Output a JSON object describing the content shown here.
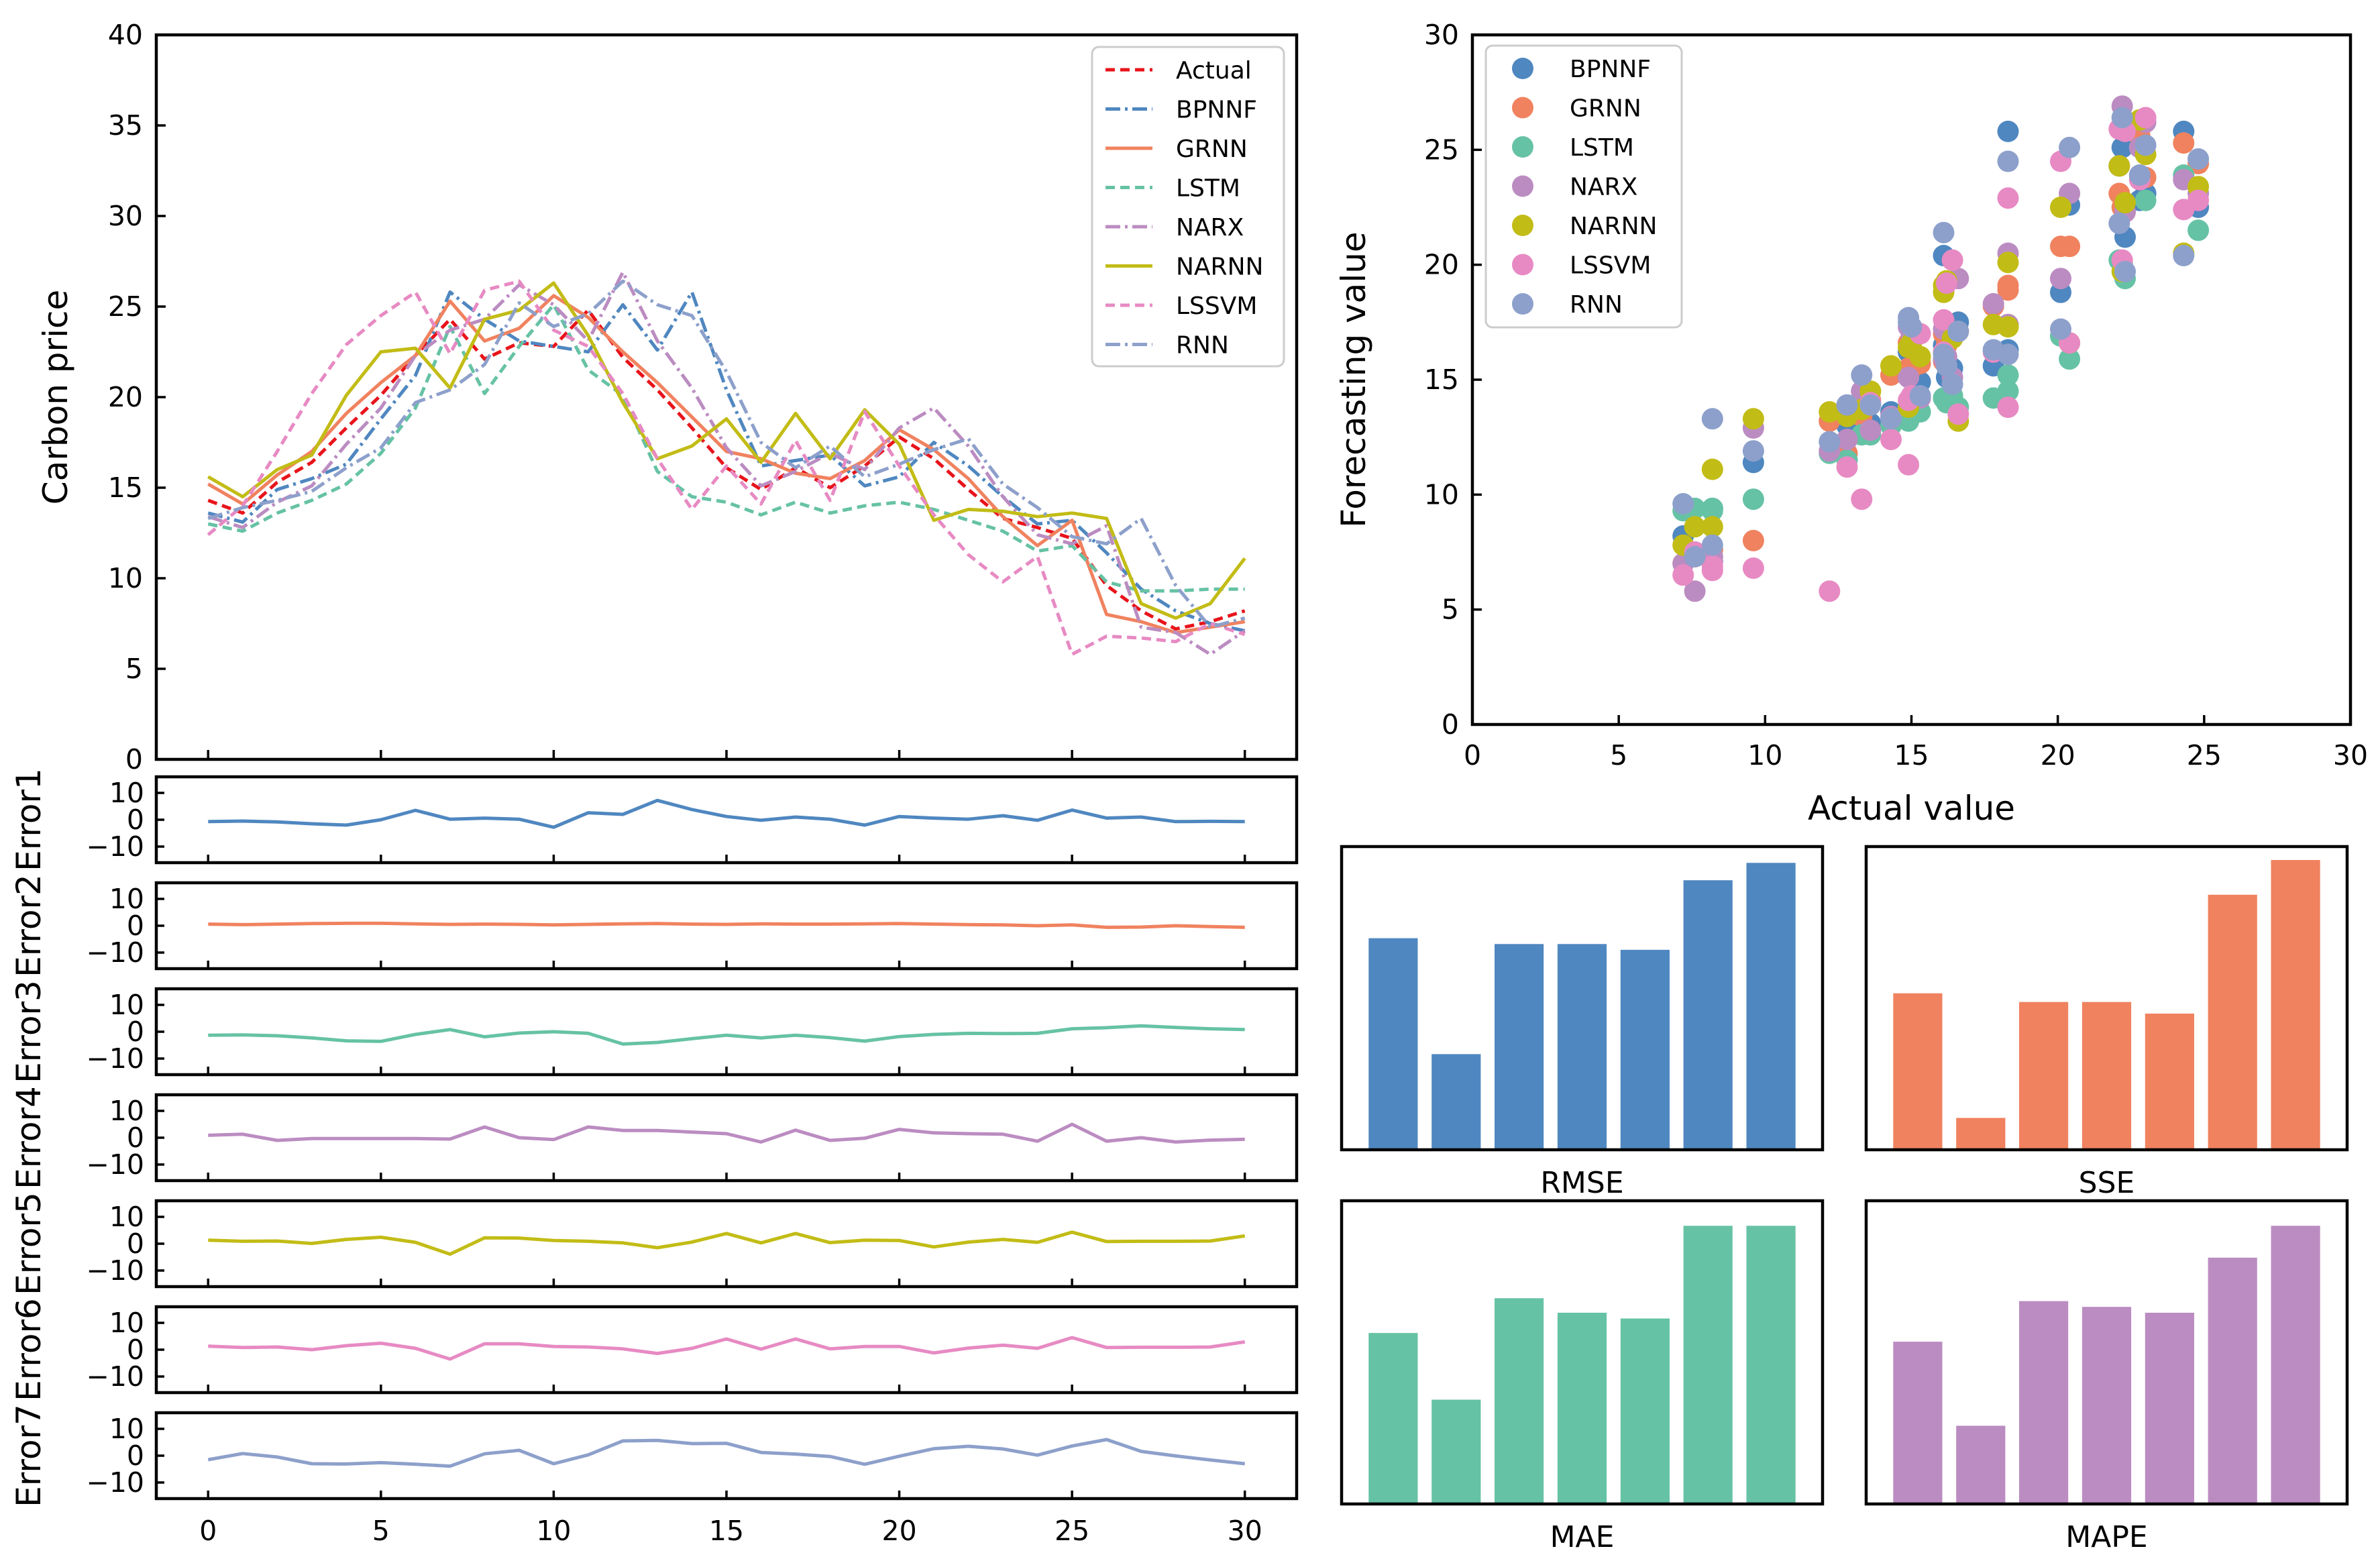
{
  "chart_data": [
    {
      "id": "price",
      "type": "line",
      "ylabel": "Carbon price",
      "ylim": [
        0,
        40
      ],
      "yticks": [
        0,
        5,
        10,
        15,
        20,
        25,
        30,
        35,
        40
      ],
      "xlim": [
        -1.5,
        31.5
      ],
      "legend_position": "top-right",
      "x": [
        0,
        1,
        2,
        3,
        4,
        5,
        6,
        7,
        8,
        9,
        10,
        11,
        12,
        13,
        14,
        15,
        16,
        17,
        18,
        19,
        20,
        21,
        22,
        23,
        24,
        25,
        26,
        27,
        28,
        29,
        30
      ],
      "series": [
        {
          "name": "Actual",
          "color": "#e8141b",
          "dash": "14,8",
          "values": [
            14.3,
            13.6,
            15.3,
            16.4,
            18.3,
            20.1,
            22.3,
            24.3,
            22.1,
            23,
            22.8,
            24.8,
            22.2,
            20.4,
            18.3,
            16.1,
            14.9,
            16.1,
            15,
            16.2,
            17.8,
            16.6,
            14.9,
            13.3,
            12.8,
            12.2,
            9.6,
            8.2,
            7.2,
            7.6,
            8.2
          ]
        },
        {
          "name": "BPNNF",
          "color": "#4f87c0",
          "dash": "22,7,4,7",
          "values": [
            13.6,
            13.1,
            14.9,
            15.5,
            16.3,
            18.8,
            21.2,
            25.8,
            24.3,
            23.1,
            22.8,
            22.5,
            25.1,
            22.6,
            25.8,
            20.4,
            16.2,
            16.5,
            16.8,
            15.1,
            15.6,
            17.5,
            16.2,
            14.5,
            13,
            13.2,
            11.4,
            9.4,
            8.2,
            7.5,
            7.1
          ]
        },
        {
          "name": "GRNN",
          "color": "#f0825f",
          "dash": "",
          "values": [
            15.2,
            14.1,
            15.7,
            17,
            19.1,
            20.8,
            22.3,
            25.3,
            23.1,
            23.8,
            25.6,
            24.4,
            22.5,
            20.8,
            18.9,
            17,
            16.6,
            15.8,
            15.5,
            16.5,
            18.2,
            17.1,
            15.5,
            13.4,
            11.8,
            13.2,
            8,
            7.6,
            7,
            7.3,
            7.6
          ]
        },
        {
          "name": "LSTM",
          "color": "#66c2a5",
          "dash": "14,8",
          "values": [
            13,
            12.6,
            13.6,
            14.3,
            15.2,
            16.9,
            19.4,
            23.9,
            20.2,
            22.8,
            25.1,
            21.5,
            20.1,
            15.9,
            14.5,
            14.2,
            13.5,
            14.2,
            13.6,
            14,
            14.2,
            13.8,
            13.2,
            12.6,
            11.5,
            11.8,
            9.8,
            9.3,
            9.3,
            9.4,
            9.4
          ]
        },
        {
          "name": "NARX",
          "color": "#bb8cc1",
          "dash": "22,7,4,7",
          "values": [
            13.4,
            12.8,
            14.2,
            15.1,
            17.4,
            19.4,
            22.3,
            23.7,
            24.3,
            26.2,
            25.1,
            23.1,
            26.9,
            23.1,
            20.5,
            17.2,
            15.1,
            15.9,
            16.9,
            16,
            18.3,
            19.4,
            17.3,
            14.5,
            12.4,
            11.9,
            12.9,
            7.3,
            7,
            5.8,
            7.1
          ]
        },
        {
          "name": "NARNN",
          "color": "#c2bc16",
          "dash": "",
          "values": [
            15.6,
            14.5,
            16,
            16.8,
            20.1,
            22.5,
            22.7,
            20.5,
            24.3,
            24.8,
            26.3,
            23.4,
            19.7,
            16.6,
            17.3,
            18.8,
            16.4,
            19.1,
            16.6,
            19.3,
            17.4,
            13.2,
            13.8,
            13.7,
            13.4,
            13.6,
            13.3,
            8.6,
            7.8,
            8.6,
            11.1
          ]
        },
        {
          "name": "LSSVM",
          "color": "#e78ac3",
          "dash": "14,8",
          "values": [
            12.4,
            14,
            17,
            20.2,
            22.9,
            24.5,
            25.8,
            22.4,
            25.9,
            26.4,
            23.7,
            22.8,
            20.2,
            16.6,
            13.8,
            16.2,
            14.1,
            17.6,
            14.3,
            19.2,
            16.2,
            13.5,
            11.3,
            9.8,
            11.2,
            5.8,
            6.8,
            6.7,
            6.5,
            7.5,
            6.9
          ]
        },
        {
          "name": "RNN",
          "color": "#8da0cb",
          "dash": "22,7,4,7",
          "values": [
            13.3,
            13.9,
            14.3,
            14.8,
            16.1,
            17.2,
            19.7,
            20.4,
            21.8,
            25.2,
            23.9,
            24.6,
            26.4,
            25.1,
            24.5,
            21.4,
            17.5,
            16.1,
            17.3,
            15.6,
            16.3,
            17.1,
            17.7,
            15.2,
            13.9,
            12.3,
            11.9,
            13.3,
            9.6,
            7.3,
            7.8
          ]
        }
      ]
    },
    {
      "id": "errors",
      "type": "line",
      "ylabels": [
        "Error1",
        "Error2",
        "Error3",
        "Error4",
        "Error5",
        "Error6",
        "Error7"
      ],
      "ylim": [
        -16,
        16
      ],
      "yticks": [
        -10,
        0,
        10
      ],
      "xticks": [
        0,
        5,
        10,
        15,
        20,
        25,
        30
      ],
      "xlim": [
        -1.5,
        31.5
      ],
      "colors": [
        "#4f87c0",
        "#f0825f",
        "#66c2a5",
        "#bb8cc1",
        "#c2bc16",
        "#e78ac3",
        "#8da0cb"
      ],
      "series": [
        [
          -0.7,
          -0.5,
          -0.8,
          -1.5,
          -2,
          0,
          3.5,
          0.2,
          0.6,
          0.2,
          -2.8,
          2.6,
          2,
          7.2,
          3.8,
          1.2,
          -0.2,
          1,
          0.2,
          -2,
          1.2,
          0.6,
          0.2,
          1.5,
          -0.2,
          3.6,
          0.6,
          1,
          -0.7,
          -0.6,
          -0.7
        ],
        [
          0.6,
          0.4,
          0.6,
          0.8,
          0.9,
          0.9,
          0.7,
          0.5,
          0.6,
          0.5,
          0.3,
          0.5,
          0.7,
          0.8,
          0.6,
          0.5,
          0.7,
          0.6,
          0.6,
          0.7,
          0.8,
          0.6,
          0.4,
          0.3,
          0,
          0.3,
          -0.6,
          -0.5,
          0,
          -0.3,
          -0.6
        ],
        [
          -1.3,
          -1.2,
          -1.5,
          -2.3,
          -3.4,
          -3.6,
          -1,
          0.8,
          -1.9,
          -0.5,
          0,
          -0.6,
          -4.6,
          -4,
          -2.6,
          -1.3,
          -2.3,
          -1.3,
          -2.2,
          -3.5,
          -1.8,
          -1,
          -0.6,
          -0.7,
          -0.6,
          1.1,
          1.5,
          2.2,
          1.6,
          1.1,
          0.8
        ]
      ],
      "series_extra": [
        [
          0.9,
          1.3,
          -1,
          -0.3,
          -0.3,
          -0.3,
          -0.3,
          -0.5,
          4,
          0,
          -0.7,
          4,
          2.7,
          2.7,
          2.1,
          1.5,
          -1.6,
          2.8,
          -1,
          -0.2,
          3.1,
          1.8,
          1.5,
          1.3,
          -1.3,
          5,
          -1.3,
          0,
          -1.6,
          -0.9,
          -0.6
        ],
        [
          1.3,
          0.9,
          1,
          0.1,
          1.6,
          2.4,
          0.5,
          -3.9,
          2.2,
          2.1,
          1.2,
          0.9,
          0.3,
          -1.5,
          0.6,
          3.8,
          0.3,
          3.8,
          0.4,
          1.3,
          1.2,
          -1.2,
          0.6,
          1.6,
          0.5,
          4.3,
          0.8,
          0.9,
          0.9,
          1,
          2.9
        ],
        [
          1.3,
          0.8,
          1,
          0,
          1.5,
          2.4,
          0.5,
          -3.5,
          2.2,
          2.2,
          1.2,
          1,
          0.3,
          -1.4,
          0.5,
          4,
          0.2,
          4,
          0.3,
          1.2,
          1.2,
          -1.2,
          0.6,
          1.7,
          0.5,
          4.5,
          0.8,
          0.9,
          0.9,
          1,
          2.9
        ],
        [
          -1.5,
          0.8,
          -0.5,
          -3,
          -3.1,
          -2.6,
          -3.2,
          -3.9,
          0.7,
          2,
          -3,
          0.3,
          5.5,
          5.7,
          4.5,
          4.6,
          1.2,
          0.6,
          -0.3,
          -3.2,
          -0.2,
          2.6,
          3.5,
          2.5,
          0.2,
          3.6,
          6,
          1.6,
          -0.1,
          -1.6,
          -3
        ]
      ]
    },
    {
      "id": "scatter",
      "type": "scatter",
      "xlabel": "Actual value",
      "ylabel": "Forecasting value",
      "xlim": [
        0,
        30
      ],
      "ylim": [
        0,
        30
      ],
      "xticks": [
        0,
        5,
        10,
        15,
        20,
        25,
        30
      ],
      "yticks": [
        0,
        5,
        10,
        15,
        20,
        25,
        30
      ],
      "legend_position": "top-left",
      "series_names": [
        "BPNNF",
        "GRNN",
        "LSTM",
        "NARX",
        "NARNN",
        "LSSVM",
        "RNN"
      ],
      "series_colors": [
        "#4f87c0",
        "#f0825f",
        "#66c2a5",
        "#bb8cc1",
        "#c2bc16",
        "#e78ac3",
        "#8da0cb"
      ]
    },
    {
      "id": "metrics",
      "type": "bar",
      "panels": [
        {
          "label": "RMSE",
          "color": "#4f87c0",
          "values": [
            0.73,
            0.33,
            0.71,
            0.71,
            0.69,
            0.93,
            0.99
          ]
        },
        {
          "label": "SSE",
          "color": "#f0825f",
          "values": [
            0.54,
            0.11,
            0.51,
            0.51,
            0.47,
            0.88,
            1.0
          ]
        },
        {
          "label": "MAE",
          "color": "#66c2a5",
          "values": [
            0.59,
            0.36,
            0.71,
            0.66,
            0.64,
            0.96,
            0.96
          ]
        },
        {
          "label": "MAPE",
          "color": "#bb8cc1",
          "values": [
            0.56,
            0.27,
            0.7,
            0.68,
            0.66,
            0.85,
            0.96
          ]
        }
      ]
    }
  ]
}
